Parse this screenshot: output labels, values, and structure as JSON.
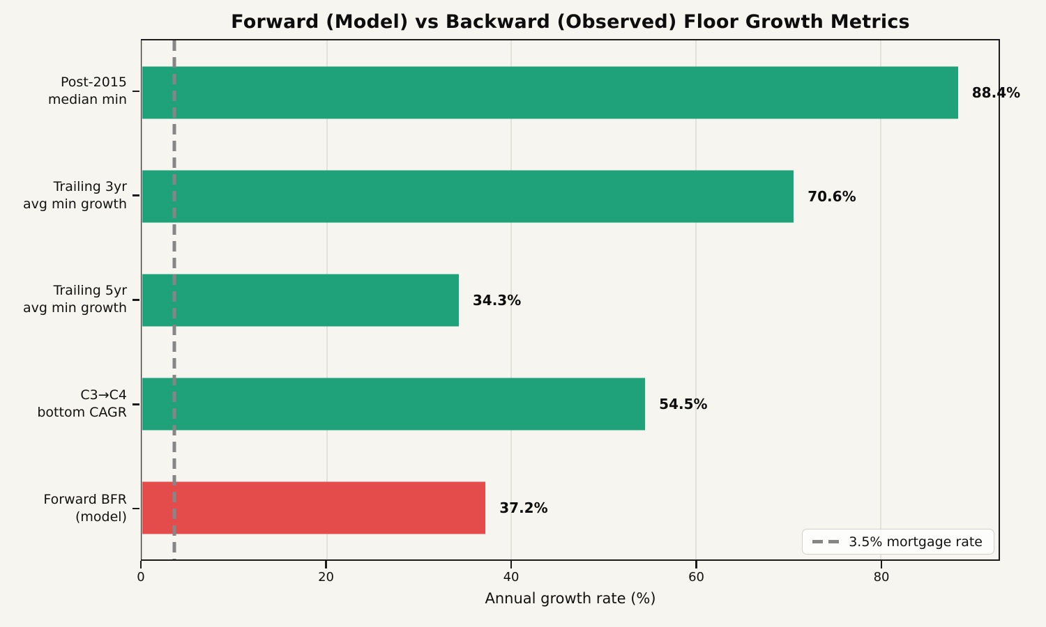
{
  "title": "Forward (Model) vs Backward (Observed) Floor Growth Metrics",
  "colors": {
    "background": "#f6f5ef",
    "bar_green": "#1fa179",
    "bar_red": "#e44c4c",
    "gridline": "#e2e1da",
    "spine": "#1b1b1b",
    "reference_line": "#868686",
    "text": "#111111"
  },
  "chart_data": {
    "type": "bar",
    "orientation": "horizontal",
    "title": "Forward (Model) vs Backward (Observed) Floor Growth Metrics",
    "xlabel": "Annual growth rate (%)",
    "ylabel": "",
    "categories": [
      "Post-2015\nmedian min",
      "Trailing 3yr\navg min growth",
      "Trailing 5yr\navg min growth",
      "C3→C4\nbottom CAGR",
      "Forward BFR\n(model)"
    ],
    "values": [
      88.4,
      70.6,
      34.3,
      54.5,
      37.2
    ],
    "value_labels": [
      "88.4%",
      "70.6%",
      "34.3%",
      "54.5%",
      "37.2%"
    ],
    "bar_colors": [
      "#1fa179",
      "#1fa179",
      "#1fa179",
      "#1fa179",
      "#e44c4c"
    ],
    "xlim": [
      0,
      92.8
    ],
    "xticks": [
      0,
      20,
      40,
      60,
      80
    ],
    "grid": "vertical-light",
    "reference_line": {
      "x": 3.5,
      "style": "dashed",
      "color": "#868686",
      "label": "3.5% mortgage rate"
    },
    "legend_position": "lower right"
  }
}
